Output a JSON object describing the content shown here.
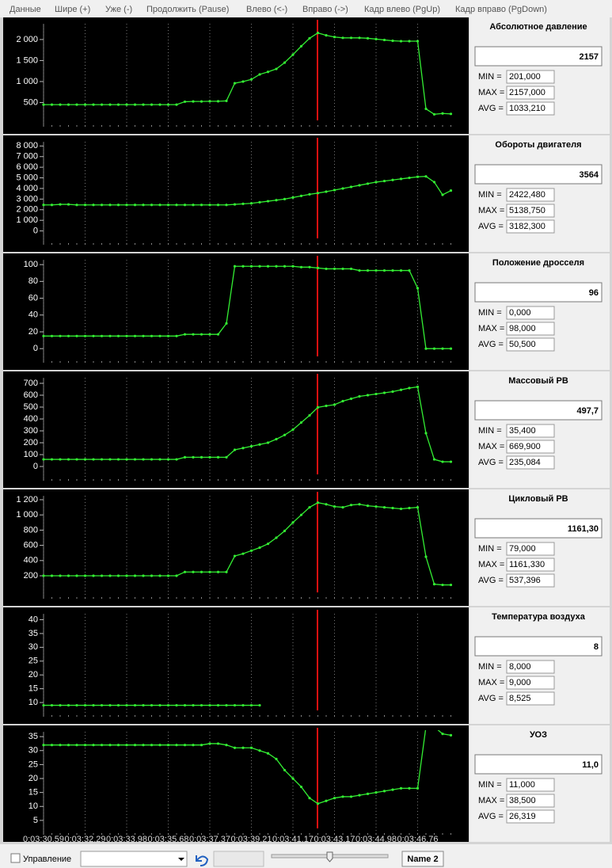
{
  "menu": [
    "Данные",
    "Шире (+)",
    "Уже (-)",
    "Продолжить (Pause)",
    "Влево (<-)",
    "Вправо (->)",
    "Кадр влево (PgUp)",
    "Кадр вправо (PgDown)"
  ],
  "categories": [
    "0:03:30.59",
    null,
    null,
    null,
    null,
    "0:03:32.29",
    null,
    null,
    null,
    null,
    "0:03:33.98",
    null,
    null,
    null,
    null,
    "0:03:35.68",
    null,
    null,
    null,
    null,
    "0:03:37.37",
    null,
    null,
    null,
    null,
    "0:03:39.21",
    null,
    null,
    null,
    null,
    "0:03:41.17",
    null,
    null,
    null,
    null,
    "0:03:43.17",
    null,
    null,
    null,
    null,
    "0:03:44.98",
    null,
    null,
    null,
    null,
    "0:03:46.76",
    null,
    null,
    null,
    null
  ],
  "panels": [
    {
      "type": "line",
      "color": "#33ee33",
      "title": "Абсолютное давление",
      "current": "2157",
      "stats": [
        {
          "label": "MIN =",
          "value": "201,000"
        },
        {
          "label": "MAX =",
          "value": "2157,000"
        },
        {
          "label": "AVG =",
          "value": "1033,210"
        }
      ],
      "ylim": [
        0,
        2300
      ],
      "yticks": [
        500,
        {
          "value": 1000,
          "label": "1 000"
        },
        {
          "value": 1500,
          "label": "1 500"
        },
        {
          "value": 2000,
          "label": "2 000"
        }
      ],
      "values": [
        450,
        450,
        450,
        450,
        450,
        450,
        450,
        450,
        450,
        450,
        450,
        450,
        450,
        450,
        450,
        450,
        450,
        520,
        525,
        525,
        530,
        530,
        540,
        960,
        1000,
        1050,
        1170,
        1230,
        1300,
        1450,
        1640,
        1840,
        2030,
        2157,
        2100,
        2060,
        2040,
        2040,
        2040,
        2030,
        2010,
        1990,
        1970,
        1960,
        1960,
        1960,
        350,
        220,
        240,
        230
      ]
    },
    {
      "type": "line",
      "color": "#33ee33",
      "title": "Обороты двигателя",
      "current": "3564",
      "stats": [
        {
          "label": "MIN =",
          "value": "2422,480"
        },
        {
          "label": "MAX =",
          "value": "5138,750"
        },
        {
          "label": "AVG =",
          "value": "3182,300"
        }
      ],
      "ylim": [
        -1000,
        8100
      ],
      "yticks": [
        0,
        {
          "value": 1000,
          "label": "1 000"
        },
        {
          "value": 2000,
          "label": "2 000"
        },
        {
          "value": 3000,
          "label": "3 000"
        },
        {
          "value": 4000,
          "label": "4 000"
        },
        {
          "value": 5000,
          "label": "5 000"
        },
        {
          "value": 6000,
          "label": "6 000"
        },
        {
          "value": 7000,
          "label": "7 000"
        },
        {
          "value": 8000,
          "label": "8 000"
        }
      ],
      "values": [
        2450,
        2450,
        2500,
        2500,
        2450,
        2450,
        2450,
        2450,
        2450,
        2450,
        2450,
        2450,
        2450,
        2450,
        2450,
        2450,
        2450,
        2450,
        2450,
        2450,
        2450,
        2450,
        2450,
        2500,
        2550,
        2600,
        2700,
        2800,
        2900,
        3000,
        3150,
        3300,
        3450,
        3564,
        3700,
        3850,
        4000,
        4150,
        4300,
        4450,
        4600,
        4700,
        4800,
        4900,
        5000,
        5100,
        5138,
        4600,
        3400,
        3800
      ]
    },
    {
      "type": "line",
      "color": "#33ee33",
      "title": "Положение дросселя",
      "current": "96",
      "stats": [
        {
          "label": "MIN =",
          "value": "0,000"
        },
        {
          "label": "MAX =",
          "value": "98,000"
        },
        {
          "label": "AVG =",
          "value": "50,500"
        }
      ],
      "ylim": [
        -13,
        102
      ],
      "yticks": [
        0,
        20,
        40,
        60,
        80,
        100
      ],
      "values": [
        15,
        15,
        15,
        15,
        15,
        15,
        15,
        15,
        15,
        15,
        15,
        15,
        15,
        15,
        15,
        15,
        15,
        17,
        17,
        17,
        17,
        17,
        30,
        98,
        98,
        98,
        98,
        98,
        98,
        98,
        98,
        97,
        97,
        96,
        95,
        95,
        95,
        95,
        93,
        93,
        93,
        93,
        93,
        93,
        93,
        72,
        0,
        0,
        0,
        0
      ]
    },
    {
      "type": "line",
      "color": "#33ee33",
      "title": "Массовый РВ",
      "current": "497,7",
      "stats": [
        {
          "label": "MIN =",
          "value": "35,400"
        },
        {
          "label": "MAX =",
          "value": "669,900"
        },
        {
          "label": "AVG =",
          "value": "235,084"
        }
      ],
      "ylim": [
        -93,
        720
      ],
      "yticks": [
        0,
        100,
        200,
        300,
        400,
        500,
        600,
        700
      ],
      "values": [
        60,
        60,
        60,
        60,
        60,
        60,
        60,
        60,
        60,
        60,
        60,
        60,
        60,
        60,
        60,
        60,
        60,
        78,
        78,
        78,
        78,
        78,
        78,
        140,
        155,
        170,
        185,
        200,
        230,
        265,
        310,
        370,
        430,
        497.7,
        510,
        520,
        550,
        570,
        590,
        600,
        610,
        620,
        630,
        645,
        660,
        669.9,
        280,
        60,
        40,
        40
      ]
    },
    {
      "type": "line",
      "color": "#33ee33",
      "title": "Цикловый РВ",
      "current": "1161,30",
      "stats": [
        {
          "label": "MIN =",
          "value": "79,000"
        },
        {
          "label": "MAX =",
          "value": "1161,330"
        },
        {
          "label": "AVG =",
          "value": "537,396"
        }
      ],
      "ylim": [
        -60,
        1210
      ],
      "yticks": [
        200,
        400,
        600,
        800,
        {
          "value": 1000,
          "label": "1 000"
        },
        {
          "value": 1200,
          "label": "1 200"
        }
      ],
      "values": [
        200,
        200,
        200,
        200,
        200,
        200,
        200,
        200,
        200,
        200,
        200,
        200,
        200,
        200,
        200,
        200,
        200,
        250,
        250,
        250,
        250,
        250,
        250,
        460,
        490,
        530,
        570,
        620,
        700,
        790,
        900,
        1000,
        1100,
        1161.3,
        1140,
        1110,
        1100,
        1130,
        1140,
        1120,
        1110,
        1100,
        1090,
        1080,
        1090,
        1100,
        450,
        90,
        80,
        80
      ]
    },
    {
      "type": "line",
      "color": "#33ee33",
      "title": "Температура воздуха",
      "current": "8",
      "stats": [
        {
          "label": "MIN =",
          "value": "8,000"
        },
        {
          "label": "MAX =",
          "value": "9,000"
        },
        {
          "label": "AVG =",
          "value": "8,525"
        }
      ],
      "ylim": [
        6,
        41
      ],
      "yticks": [
        10,
        15,
        20,
        25,
        30,
        35,
        40
      ],
      "values": [
        9,
        9,
        9,
        9,
        9,
        9,
        9,
        9,
        9,
        9,
        9,
        9,
        9,
        9,
        9,
        9,
        9,
        9,
        9,
        9,
        9,
        9,
        9,
        9,
        9,
        9,
        9,
        null,
        null,
        null,
        null,
        null,
        null,
        null,
        null,
        null,
        null,
        null,
        null,
        null,
        null,
        null,
        null,
        null,
        null,
        null,
        null,
        null,
        null,
        null
      ]
    },
    {
      "type": "line",
      "color": "#33ee33",
      "title": "УОЗ",
      "current": "11,0",
      "stats": [
        {
          "label": "MIN =",
          "value": "11,000"
        },
        {
          "label": "MAX =",
          "value": "38,500"
        },
        {
          "label": "AVG =",
          "value": "26,319"
        }
      ],
      "ylim": [
        1,
        35.6
      ],
      "yticks": [
        5,
        10,
        15,
        20,
        25,
        30,
        35
      ],
      "values": [
        32,
        32,
        32,
        32,
        32,
        32,
        32,
        32,
        32,
        32,
        32,
        32,
        32,
        32,
        32,
        32,
        32,
        32,
        32,
        32,
        32.5,
        32.5,
        32,
        31,
        31,
        31,
        30,
        29,
        27,
        23,
        20,
        17,
        13,
        11,
        12,
        13,
        13.5,
        13.5,
        14,
        14.5,
        15,
        15.5,
        16,
        16.5,
        16.5,
        16.5,
        38.5,
        38.5,
        36,
        35.5
      ]
    }
  ],
  "footer": {
    "checkbox_label": "Управление",
    "name": "Name 2"
  }
}
